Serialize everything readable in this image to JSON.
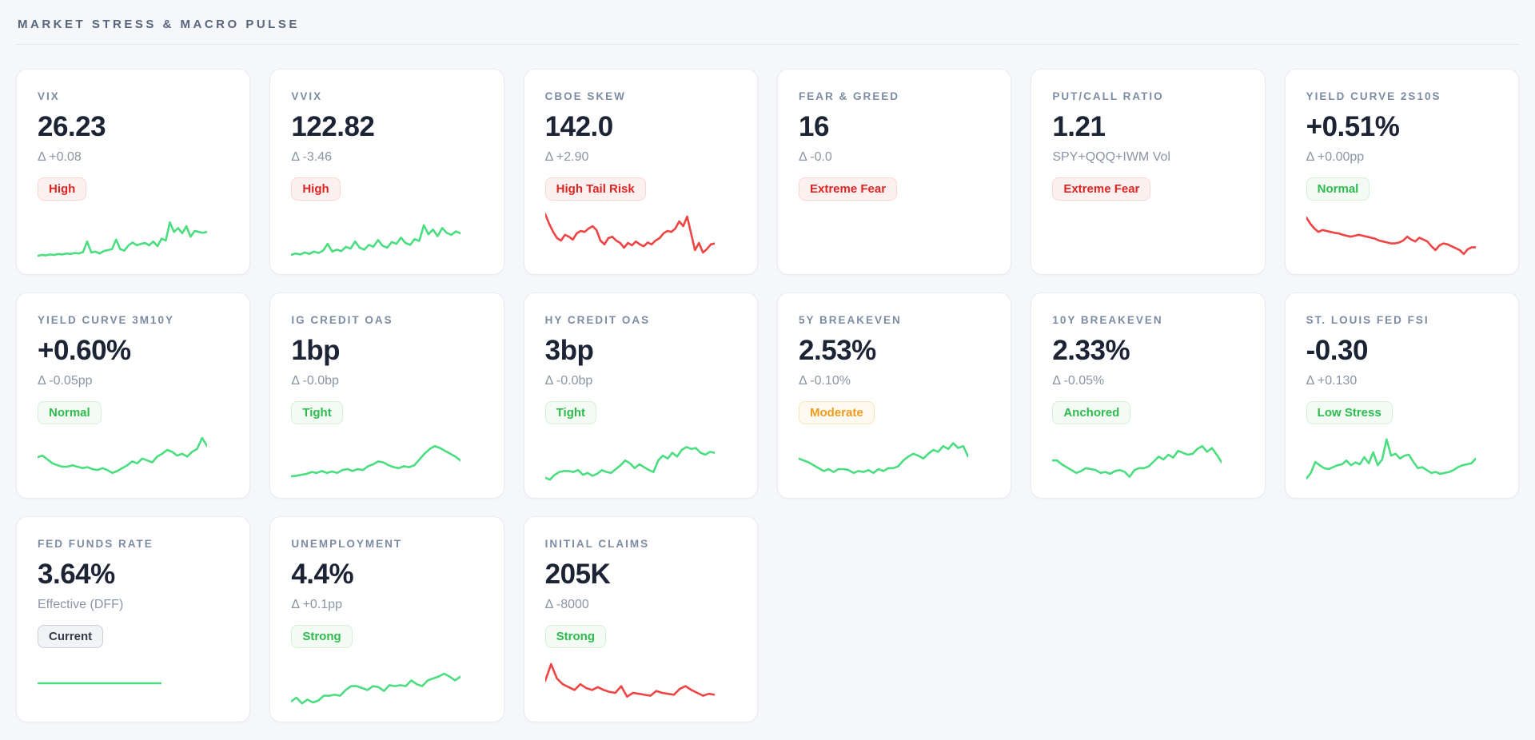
{
  "page": {
    "section_title": "MARKET STRESS & MACRO PULSE",
    "colors": {
      "spark_green": "#4ade80",
      "spark_red": "#ef4444"
    },
    "badge_styles": {
      "danger": {
        "text": "#e02424",
        "bg": "#fdf1f0",
        "border": "#f8d7d3"
      },
      "success": {
        "text": "#2dbb4e",
        "bg": "#f3fbf4",
        "border": "#d3f0d8"
      },
      "warning": {
        "text": "#f09b1d",
        "bg": "#fffaf1",
        "border": "#f8e3b9"
      },
      "neutral": {
        "text": "#333c4b",
        "bg": "#f1f3f6",
        "border": "#c8cfd8"
      }
    }
  },
  "cards": [
    {
      "title": "VIX",
      "value": "26.23",
      "delta": "Δ +0.08",
      "badge": "High",
      "badge_type": "danger",
      "spark_color": "green",
      "spark": [
        8,
        10,
        9,
        11,
        10,
        12,
        11,
        13,
        12,
        14,
        13,
        16,
        38,
        15,
        17,
        13,
        18,
        20,
        22,
        42,
        22,
        19,
        30,
        36,
        30,
        33,
        35,
        30,
        38,
        28,
        44,
        40,
        78,
        58,
        66,
        55,
        70,
        48,
        60,
        58,
        56,
        58
      ]
    },
    {
      "title": "VVIX",
      "value": "122.82",
      "delta": "Δ -3.46",
      "badge": "High",
      "badge_type": "danger",
      "spark_color": "green",
      "spark": [
        10,
        13,
        11,
        15,
        12,
        17,
        14,
        19,
        33,
        17,
        21,
        18,
        27,
        23,
        38,
        25,
        21,
        31,
        27,
        41,
        29,
        25,
        37,
        33,
        46,
        35,
        31,
        43,
        39,
        72,
        53,
        63,
        49,
        66,
        56,
        52,
        59,
        55
      ]
    },
    {
      "title": "CBOE SKEW",
      "value": "142.0",
      "delta": "Δ +2.90",
      "badge": "High Tail Risk",
      "badge_type": "danger",
      "spark_color": "red",
      "spark": [
        95,
        75,
        58,
        45,
        40,
        52,
        48,
        42,
        55,
        60,
        58,
        65,
        70,
        62,
        40,
        32,
        45,
        48,
        40,
        35,
        25,
        35,
        30,
        38,
        32,
        28,
        36,
        32,
        40,
        45,
        55,
        60,
        58,
        65,
        80,
        70,
        90,
        55,
        20,
        35,
        15,
        22,
        32,
        34
      ]
    },
    {
      "title": "FEAR & GREED",
      "value": "16",
      "delta": "Δ -0.0",
      "badge": "Extreme Fear",
      "badge_type": "danger",
      "spark_color": null,
      "spark": null
    },
    {
      "title": "PUT/CALL RATIO",
      "value": "1.21",
      "delta": "SPY+QQQ+IWM Vol",
      "badge": "Extreme Fear",
      "badge_type": "danger",
      "spark_color": null,
      "spark": null
    },
    {
      "title": "YIELD CURVE 2S10S",
      "value": "+0.51%",
      "delta": "Δ +0.00pp",
      "badge": "Normal",
      "badge_type": "success",
      "spark_color": "red",
      "spark": [
        88,
        75,
        65,
        58,
        62,
        60,
        58,
        56,
        55,
        52,
        50,
        48,
        50,
        52,
        50,
        48,
        46,
        44,
        40,
        38,
        36,
        34,
        34,
        36,
        40,
        48,
        42,
        38,
        46,
        42,
        38,
        28,
        20,
        30,
        34,
        32,
        28,
        24,
        20,
        12,
        22,
        26,
        26
      ]
    },
    {
      "title": "YIELD CURVE 3M10Y",
      "value": "+0.60%",
      "delta": "Δ -0.05pp",
      "badge": "Normal",
      "badge_type": "success",
      "spark_color": "green",
      "spark": [
        55,
        58,
        50,
        42,
        38,
        35,
        35,
        38,
        35,
        32,
        34,
        30,
        28,
        32,
        28,
        22,
        26,
        32,
        38,
        46,
        42,
        52,
        48,
        44,
        56,
        62,
        70,
        66,
        58,
        62,
        56,
        66,
        72,
        95,
        78
      ]
    },
    {
      "title": "IG CREDIT OAS",
      "value": "1bp",
      "delta": "Δ -0.0bp",
      "badge": "Tight",
      "badge_type": "success",
      "spark_color": "green",
      "spark": [
        15,
        16,
        18,
        20,
        24,
        22,
        26,
        22,
        25,
        22,
        28,
        30,
        26,
        30,
        28,
        36,
        40,
        46,
        44,
        38,
        34,
        32,
        36,
        34,
        38,
        50,
        62,
        72,
        78,
        74,
        68,
        62,
        56,
        48
      ]
    },
    {
      "title": "HY CREDIT OAS",
      "value": "3bp",
      "delta": "Δ -0.0bp",
      "badge": "Tight",
      "badge_type": "success",
      "spark_color": "green",
      "spark": [
        12,
        8,
        18,
        24,
        26,
        26,
        24,
        28,
        18,
        22,
        16,
        20,
        28,
        24,
        22,
        30,
        38,
        48,
        42,
        32,
        40,
        34,
        28,
        24,
        48,
        58,
        52,
        64,
        56,
        70,
        76,
        72,
        74,
        64,
        60,
        66,
        64
      ]
    },
    {
      "title": "5Y BREAKEVEN",
      "value": "2.53%",
      "delta": "Δ -0.10%",
      "badge": "Moderate",
      "badge_type": "warning",
      "spark_color": "green",
      "spark": [
        52,
        48,
        44,
        38,
        32,
        26,
        30,
        24,
        30,
        30,
        28,
        22,
        26,
        24,
        28,
        22,
        30,
        26,
        32,
        32,
        36,
        48,
        56,
        62,
        58,
        52,
        62,
        70,
        66,
        78,
        72,
        84,
        74,
        78,
        56
      ]
    },
    {
      "title": "10Y BREAKEVEN",
      "value": "2.33%",
      "delta": "Δ -0.05%",
      "badge": "Anchored",
      "badge_type": "success",
      "spark_color": "green",
      "spark": [
        48,
        48,
        40,
        34,
        28,
        22,
        26,
        32,
        30,
        28,
        22,
        24,
        20,
        26,
        28,
        24,
        14,
        28,
        32,
        32,
        36,
        46,
        56,
        50,
        60,
        54,
        68,
        64,
        60,
        62,
        72,
        78,
        66,
        74,
        60,
        44
      ]
    },
    {
      "title": "ST. LOUIS FED FSI",
      "value": "-0.30",
      "delta": "Δ +0.130",
      "badge": "Low Stress",
      "badge_type": "success",
      "spark_color": "green",
      "spark": [
        10,
        22,
        45,
        38,
        32,
        30,
        34,
        38,
        40,
        48,
        38,
        44,
        40,
        55,
        42,
        65,
        38,
        50,
        92,
        58,
        62,
        52,
        58,
        60,
        45,
        32,
        34,
        28,
        22,
        24,
        20,
        22,
        24,
        28,
        34,
        38,
        40,
        42,
        52
      ]
    },
    {
      "title": "FED FUNDS RATE",
      "value": "3.64%",
      "delta": "Effective (DFF)",
      "badge": "Current",
      "badge_type": "neutral",
      "spark_color": "green",
      "spark_width": 155,
      "spark": [
        50,
        50
      ]
    },
    {
      "title": "UNEMPLOYMENT",
      "value": "4.4%",
      "delta": "Δ +0.1pp",
      "badge": "Strong",
      "badge_type": "success",
      "spark_color": "green",
      "spark": [
        12,
        20,
        8,
        16,
        10,
        14,
        24,
        24,
        26,
        24,
        36,
        44,
        44,
        40,
        36,
        44,
        42,
        34,
        46,
        44,
        46,
        44,
        56,
        48,
        44,
        56,
        60,
        64,
        70,
        64,
        56,
        64
      ]
    },
    {
      "title": "INITIAL CLAIMS",
      "value": "205K",
      "delta": "Δ -8000",
      "badge": "Strong",
      "badge_type": "success",
      "spark_color": "red",
      "spark": [
        55,
        90,
        60,
        48,
        42,
        36,
        48,
        40,
        36,
        42,
        36,
        32,
        30,
        44,
        22,
        30,
        28,
        26,
        24,
        34,
        30,
        28,
        26,
        38,
        44,
        36,
        30,
        24,
        28,
        26
      ]
    }
  ]
}
